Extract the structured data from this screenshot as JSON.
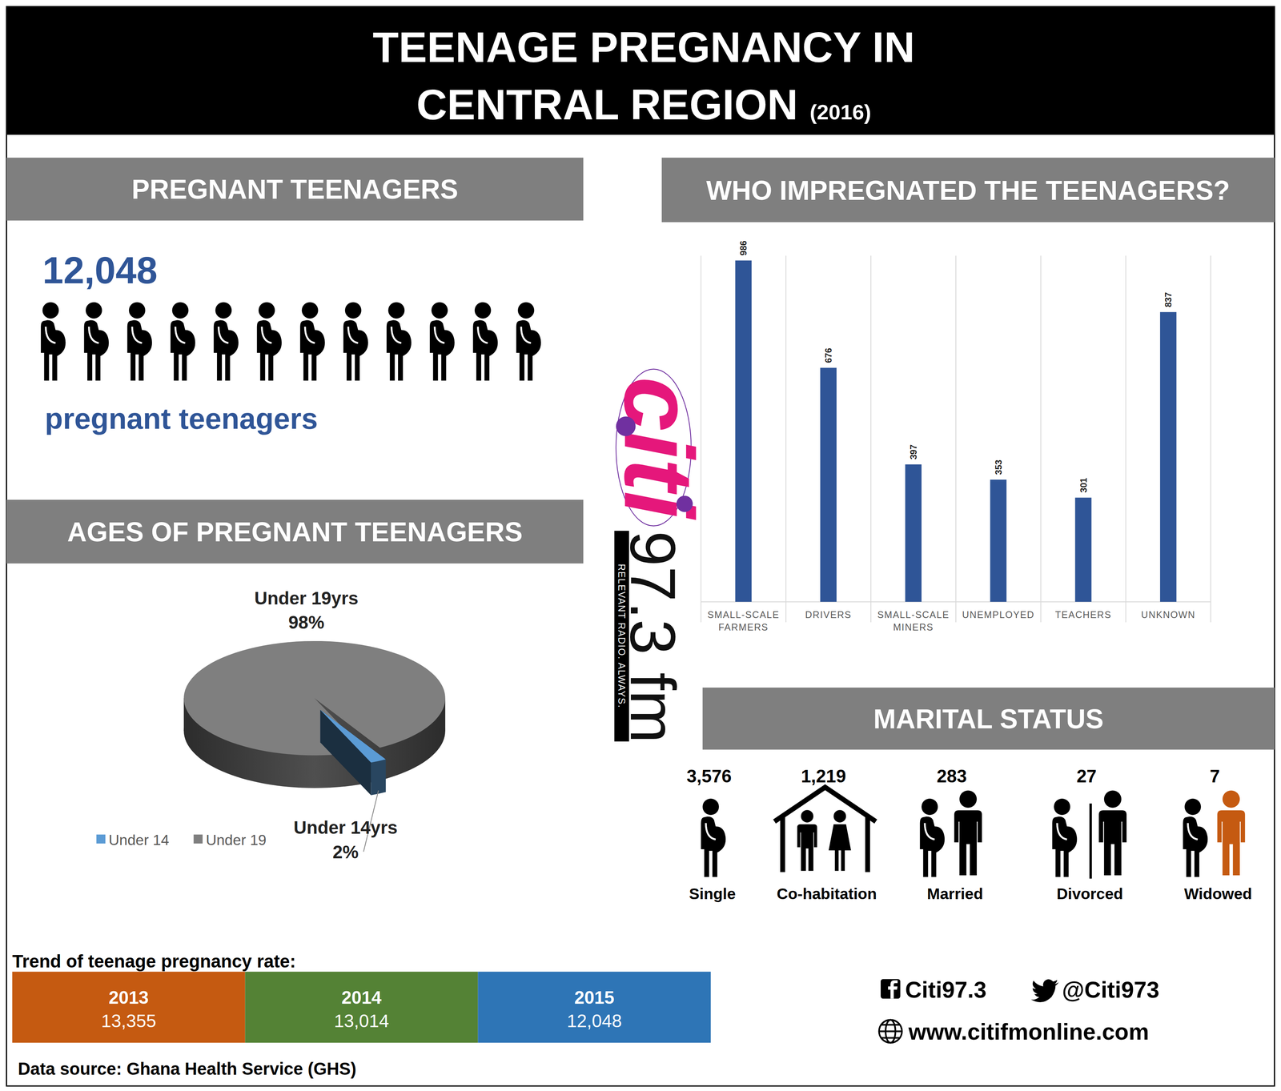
{
  "header": {
    "title_lines": [
      "TEENAGE PREGNANCY IN",
      "CENTRAL REGION"
    ],
    "year": "(2016)"
  },
  "pregnant_teenagers": {
    "heading": "PREGNANT TEENAGERS",
    "count": "12,048",
    "caption": "pregnant teenagers"
  },
  "chart_data": [
    {
      "type": "pie",
      "title": "AGES OF PREGNANT TEENAGERS",
      "categories": [
        "Under 14",
        "Under 19"
      ],
      "slice_labels": [
        "Under 14yrs",
        "Under 19yrs"
      ],
      "values": [
        2,
        98
      ],
      "value_labels": [
        "2%",
        "98%"
      ],
      "colors": [
        "#5b9bd5",
        "#7f7f7f"
      ],
      "data_labels": true,
      "legend": "bottom-left"
    },
    {
      "type": "bar",
      "title": "WHO IMPREGNATED THE TEENAGERS?",
      "categories": [
        "SMALL-SCALE FARMERS",
        "DRIVERS",
        "SMALL-SCALE MINERS",
        "UNEMPLOYED",
        "TEACHERS",
        "UNKNOWN"
      ],
      "values": [
        986,
        676,
        397,
        353,
        301,
        837
      ],
      "color": "#2f5597",
      "ylim": [
        0,
        1000
      ],
      "grid": true,
      "data_labels": true,
      "tick_labels": "x"
    },
    {
      "type": "pictograph",
      "title": "MARITAL STATUS",
      "categories": [
        "Single",
        "Co-habitation",
        "Married",
        "Divorced",
        "Widowed"
      ],
      "values": [
        3576,
        1219,
        283,
        27,
        7
      ],
      "value_labels": [
        "3,576",
        "1,219",
        "283",
        "27",
        "7"
      ],
      "data_labels": true
    }
  ],
  "trend": {
    "title": "Trend of teenage pregnancy rate:",
    "items": [
      {
        "year": "2013",
        "value": "13,355",
        "color": "#c55a11"
      },
      {
        "year": "2014",
        "value": "13,014",
        "color": "#548235"
      },
      {
        "year": "2015",
        "value": "12,048",
        "color": "#2e75b6"
      }
    ]
  },
  "logo": {
    "name": "citi",
    "frequency": "97.3 fm",
    "tagline": "RELEVANT RADIO. ALWAYS."
  },
  "footer": {
    "source": "Data source: Ghana Health Service (GHS)",
    "facebook": "Citi97.3",
    "twitter": "@Citi973",
    "website": "www.citifmonline.com"
  }
}
